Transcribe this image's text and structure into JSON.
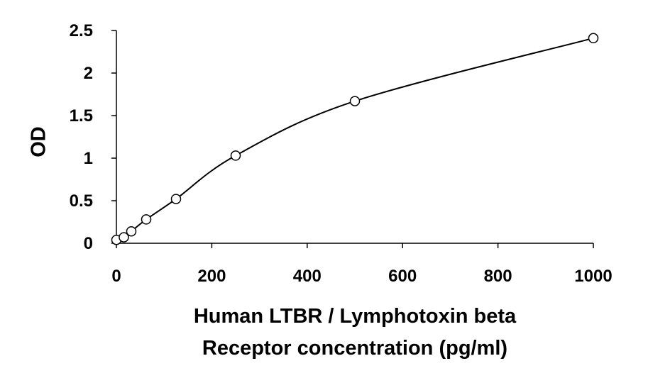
{
  "chart_data": {
    "type": "scatter",
    "title": "",
    "xlabel_lines": [
      "Human LTBR / Lymphotoxin beta",
      "Receptor concentration (pg/ml)"
    ],
    "ylabel": "OD",
    "xlim": [
      0,
      1000
    ],
    "ylim": [
      0,
      2.5
    ],
    "x_ticks": [
      0,
      200,
      400,
      600,
      800,
      1000
    ],
    "y_ticks": [
      0,
      0.5,
      1,
      1.5,
      2,
      2.5
    ],
    "x_tick_labels": [
      "0",
      "200",
      "400",
      "600",
      "800",
      "1000"
    ],
    "y_tick_labels": [
      "0",
      "0.5",
      "1",
      "1.5",
      "2",
      "2.5"
    ],
    "grid": false,
    "legend": "none",
    "series": [
      {
        "marker": "open-circle",
        "fit": "smooth-curve",
        "x": [
          0,
          15.6,
          31.25,
          62.5,
          125,
          250,
          500,
          1000
        ],
        "y": [
          0.04,
          0.07,
          0.14,
          0.28,
          0.52,
          1.03,
          1.67,
          2.41
        ]
      }
    ]
  }
}
